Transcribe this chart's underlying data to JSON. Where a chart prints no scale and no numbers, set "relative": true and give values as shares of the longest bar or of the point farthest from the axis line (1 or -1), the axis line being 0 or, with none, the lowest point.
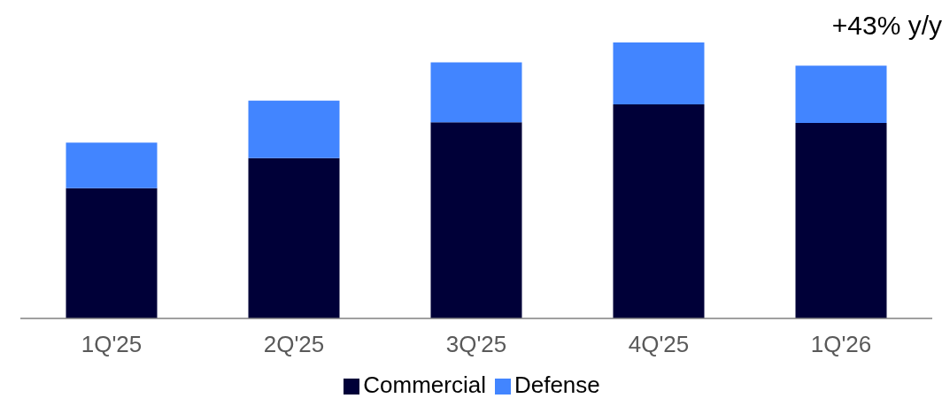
{
  "chart_data": {
    "type": "bar",
    "stacked": true,
    "relative": true,
    "categories": [
      "1Q'25",
      "2Q'25",
      "3Q'25",
      "4Q'25",
      "1Q'26"
    ],
    "series": [
      {
        "name": "Commercial",
        "color": "#000038",
        "values": [
          0.472,
          0.581,
          0.711,
          0.776,
          0.708
        ]
      },
      {
        "name": "Defense",
        "color": "#4285ff",
        "values": [
          0.165,
          0.208,
          0.217,
          0.224,
          0.208
        ]
      }
    ],
    "annotations": [
      "+43% y/y"
    ],
    "legend": "bottom",
    "grid": false
  }
}
